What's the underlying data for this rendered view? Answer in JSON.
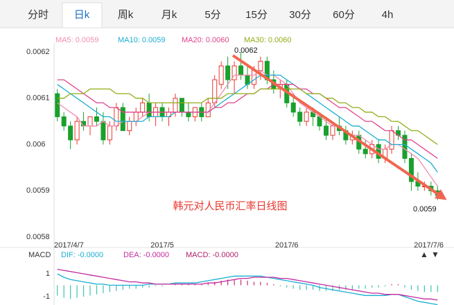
{
  "tabs": [
    "分时",
    "日k",
    "周k",
    "月k",
    "5分",
    "15分",
    "30分",
    "60分",
    "4h"
  ],
  "selected_tab": 1,
  "chart_data": {
    "type": "candlestick",
    "title": "韩元对人民币汇率日线图",
    "legend": [
      "MA5: 0.0059",
      "MA10: 0.0059",
      "MA20: 0.0060",
      "MA30: 0.0060"
    ],
    "annotations": {
      "high": "0.0062",
      "low": "0.0059"
    },
    "categories": [
      "2017/4/7",
      null,
      null,
      null,
      null,
      null,
      null,
      null,
      null,
      null,
      null,
      null,
      null,
      null,
      null,
      null,
      "2017/5",
      null,
      null,
      null,
      null,
      null,
      null,
      null,
      null,
      null,
      null,
      null,
      null,
      null,
      null,
      null,
      null,
      null,
      null,
      "2017/6",
      null,
      null,
      null,
      null,
      null,
      null,
      null,
      null,
      null,
      null,
      null,
      null,
      null,
      null,
      null,
      null,
      null,
      null,
      null,
      null,
      null,
      null,
      "2017/7/6"
    ],
    "open": [
      0.00611,
      0.00606,
      0.00604,
      0.00601,
      0.00605,
      0.00604,
      0.00606,
      0.00605,
      0.00601,
      0.00604,
      0.00608,
      0.00603,
      0.00605,
      0.00607,
      0.00609,
      0.00606,
      0.00608,
      0.00606,
      0.00607,
      0.0061,
      0.00607,
      0.00606,
      0.00608,
      0.00606,
      0.00609,
      0.00613,
      0.00617,
      0.00614,
      0.00617,
      0.00615,
      0.00613,
      0.00616,
      0.00618,
      0.00614,
      0.00612,
      0.00613,
      0.00609,
      0.00607,
      0.00605,
      0.00607,
      0.00606,
      0.00604,
      0.00602,
      0.00604,
      0.00603,
      0.00601,
      0.00602,
      0.00599,
      0.00598,
      0.006,
      0.00597,
      0.00599,
      0.00603,
      0.00602,
      0.00597,
      0.00592,
      0.00591,
      0.00591,
      0.0059
    ],
    "high": [
      0.00612,
      0.00607,
      0.00605,
      0.00606,
      0.00607,
      0.00606,
      0.00608,
      0.00607,
      0.00605,
      0.00609,
      0.00609,
      0.00606,
      0.00608,
      0.0061,
      0.00611,
      0.00609,
      0.00609,
      0.00608,
      0.00611,
      0.0061,
      0.00609,
      0.00608,
      0.00609,
      0.0061,
      0.00615,
      0.00618,
      0.00619,
      0.00618,
      0.0062,
      0.00617,
      0.00617,
      0.00619,
      0.00619,
      0.00616,
      0.00614,
      0.00614,
      0.00611,
      0.00608,
      0.00608,
      0.00608,
      0.00607,
      0.00606,
      0.00605,
      0.00606,
      0.00604,
      0.00603,
      0.00603,
      0.00601,
      0.00601,
      0.00601,
      0.006,
      0.00604,
      0.00604,
      0.00603,
      0.00598,
      0.00594,
      0.00592,
      0.00592,
      0.00591
    ],
    "low": [
      0.00605,
      0.00603,
      0.00599,
      0.006,
      0.00603,
      0.00602,
      0.00604,
      0.006,
      0.006,
      0.00603,
      0.00603,
      0.00602,
      0.00604,
      0.00606,
      0.00605,
      0.00604,
      0.00605,
      0.00604,
      0.00606,
      0.00606,
      0.00605,
      0.00605,
      0.00605,
      0.00606,
      0.00608,
      0.00612,
      0.00612,
      0.00611,
      0.00614,
      0.00612,
      0.00612,
      0.00614,
      0.00613,
      0.00611,
      0.0061,
      0.00608,
      0.00606,
      0.00604,
      0.00604,
      0.00604,
      0.00603,
      0.00601,
      0.00601,
      0.00602,
      0.006,
      0.006,
      0.00598,
      0.00597,
      0.00597,
      0.00596,
      0.00596,
      0.00598,
      0.00601,
      0.00596,
      0.0059,
      0.0059,
      0.0059,
      0.00589,
      0.00588
    ],
    "close": [
      0.00606,
      0.00604,
      0.00601,
      0.00605,
      0.00604,
      0.00606,
      0.00605,
      0.00601,
      0.00604,
      0.00608,
      0.00603,
      0.00605,
      0.00607,
      0.00609,
      0.00606,
      0.00608,
      0.00606,
      0.00607,
      0.0061,
      0.00607,
      0.00606,
      0.00608,
      0.00606,
      0.00609,
      0.00614,
      0.00617,
      0.00614,
      0.00617,
      0.00615,
      0.00613,
      0.00616,
      0.00618,
      0.00614,
      0.00612,
      0.00613,
      0.00609,
      0.00607,
      0.00605,
      0.00607,
      0.00606,
      0.00604,
      0.00602,
      0.00604,
      0.00603,
      0.00601,
      0.00602,
      0.00599,
      0.00598,
      0.006,
      0.00597,
      0.00599,
      0.00603,
      0.00602,
      0.00597,
      0.00592,
      0.00591,
      0.00591,
      0.0059,
      0.00589
    ],
    "up_color": "#e8372f",
    "down_color": "#19a02d",
    "series": [
      {
        "name": "MA5",
        "color": "#f28db2",
        "values": [
          0.00609,
          0.00608,
          0.00607,
          0.00606,
          0.00604,
          0.00604,
          0.00604,
          0.00605,
          0.00604,
          0.00604,
          0.00605,
          0.00605,
          0.00605,
          0.00606,
          0.00607,
          0.00607,
          0.00607,
          0.00607,
          0.00607,
          0.00607,
          0.00607,
          0.00607,
          0.00607,
          0.00607,
          0.00609,
          0.00611,
          0.00613,
          0.00615,
          0.00615,
          0.00615,
          0.00615,
          0.00616,
          0.00615,
          0.00615,
          0.00614,
          0.00613,
          0.00611,
          0.00609,
          0.00608,
          0.00607,
          0.00606,
          0.00605,
          0.00604,
          0.00604,
          0.00603,
          0.00602,
          0.00602,
          0.00601,
          0.006,
          0.00599,
          0.00599,
          0.006,
          0.006,
          0.00599,
          0.00598,
          0.00597,
          0.00595,
          0.00593,
          0.00591
        ]
      },
      {
        "name": "MA10",
        "color": "#1aaed2",
        "values": [
          0.00613,
          0.00612,
          0.00611,
          0.0061,
          0.00609,
          0.00608,
          0.00607,
          0.00606,
          0.00606,
          0.00605,
          0.00605,
          0.00605,
          0.00605,
          0.00605,
          0.00606,
          0.00606,
          0.00606,
          0.00606,
          0.00607,
          0.00607,
          0.00607,
          0.00607,
          0.00607,
          0.00607,
          0.00608,
          0.00609,
          0.0061,
          0.00611,
          0.00612,
          0.00613,
          0.00614,
          0.00615,
          0.00615,
          0.00615,
          0.00615,
          0.00614,
          0.00613,
          0.00612,
          0.00611,
          0.0061,
          0.00609,
          0.00608,
          0.00607,
          0.00606,
          0.00605,
          0.00604,
          0.00604,
          0.00603,
          0.00602,
          0.00601,
          0.00601,
          0.006,
          0.006,
          0.006,
          0.00599,
          0.00598,
          0.00597,
          0.00596,
          0.00594
        ]
      },
      {
        "name": "MA20",
        "color": "#e0428c",
        "values": [
          0.00614,
          0.00614,
          0.00613,
          0.00612,
          0.00611,
          0.0061,
          0.00609,
          0.00609,
          0.00608,
          0.00608,
          0.00607,
          0.00607,
          0.00607,
          0.00607,
          0.00607,
          0.00607,
          0.00607,
          0.00607,
          0.00607,
          0.00607,
          0.00607,
          0.00607,
          0.00607,
          0.00607,
          0.00608,
          0.00608,
          0.00609,
          0.00609,
          0.0061,
          0.00611,
          0.00611,
          0.00612,
          0.00612,
          0.00613,
          0.00613,
          0.00613,
          0.00613,
          0.00612,
          0.00612,
          0.00611,
          0.00611,
          0.0061,
          0.00609,
          0.00608,
          0.00608,
          0.00607,
          0.00606,
          0.00605,
          0.00605,
          0.00604,
          0.00603,
          0.00603,
          0.00602,
          0.00601,
          0.00601,
          0.006,
          0.00599,
          0.00598,
          0.00597
        ]
      },
      {
        "name": "MA30",
        "color": "#8fae14",
        "values": [
          0.0061,
          0.0061,
          0.00611,
          0.00611,
          0.00611,
          0.00612,
          0.00612,
          0.00612,
          0.00612,
          0.00611,
          0.00611,
          0.00611,
          0.0061,
          0.0061,
          0.00609,
          0.00609,
          0.00609,
          0.00609,
          0.00609,
          0.00609,
          0.00609,
          0.00609,
          0.00609,
          0.0061,
          0.0061,
          0.0061,
          0.00611,
          0.00611,
          0.00611,
          0.00611,
          0.00611,
          0.00612,
          0.00612,
          0.00612,
          0.00612,
          0.00612,
          0.00612,
          0.00612,
          0.00611,
          0.00611,
          0.00611,
          0.0061,
          0.0061,
          0.00609,
          0.00609,
          0.00608,
          0.00608,
          0.00607,
          0.00607,
          0.00606,
          0.00606,
          0.00605,
          0.00605,
          0.00604,
          0.00603,
          0.00603,
          0.00602,
          0.00601,
          0.006
        ]
      }
    ],
    "ylim": [
      0.0058,
      0.0062
    ],
    "yticks": [
      0.0062,
      0.0061,
      0.006,
      0.0059,
      0.0058
    ],
    "macd": {
      "label": "MACD",
      "legend": [
        "DIF: -0.0000",
        "DEA: -0.0000",
        "MACD: -0.0000"
      ],
      "ylim": [
        -1.7,
        1.7
      ],
      "yticks": [
        1,
        -1
      ],
      "pos_color": "#c23070",
      "neg_color": "#3fc1b0",
      "histogram": [
        -0.9,
        -1.1,
        -1.2,
        -1.1,
        -1,
        -0.9,
        -0.8,
        -0.7,
        -0.6,
        -0.5,
        -0.4,
        -0.3,
        -0.3,
        -0.2,
        -0.2,
        -0.1,
        -0.1,
        0,
        0.1,
        0.1,
        0.1,
        0.1,
        0.1,
        0.2,
        0.3,
        0.4,
        0.5,
        0.5,
        0.5,
        0.4,
        0.3,
        0.3,
        0.2,
        0.1,
        -0.1,
        -0.2,
        -0.3,
        -0.4,
        -0.4,
        -0.4,
        -0.5,
        -0.5,
        -0.5,
        -0.4,
        -0.4,
        -0.4,
        -0.3,
        -0.3,
        -0.2,
        -0.2,
        -0.1,
        0.1,
        0.1,
        -0.2,
        -0.4,
        -0.5,
        -0.6,
        -0.6,
        -0.6
      ],
      "series": [
        {
          "name": "DIF",
          "color": "#1aaed2",
          "values": [
            1,
            0.7,
            0.5,
            0.4,
            0.3,
            0.2,
            0.1,
            0.1,
            0,
            0,
            0,
            0,
            0,
            0,
            0.1,
            0.1,
            0.1,
            0.1,
            0.2,
            0.2,
            0.2,
            0.2,
            0.3,
            0.4,
            0.5,
            0.6,
            0.7,
            0.8,
            0.8,
            0.8,
            0.8,
            0.8,
            0.7,
            0.6,
            0.5,
            0.4,
            0.3,
            0.2,
            0.1,
            0,
            -0.2,
            -0.3,
            -0.4,
            -0.5,
            -0.6,
            -0.7,
            -0.8,
            -0.9,
            -0.9,
            -0.9,
            -0.9,
            -0.8,
            -0.8,
            -1,
            -1.2,
            -1.4,
            -1.5,
            -1.6,
            -1.7
          ]
        },
        {
          "name": "DEA",
          "color": "#c42a9e",
          "values": [
            1.4,
            1.3,
            1.2,
            1.1,
            1,
            0.9,
            0.8,
            0.7,
            0.6,
            0.5,
            0.4,
            0.3,
            0.3,
            0.2,
            0.2,
            0.1,
            0.1,
            0.1,
            0.1,
            0.1,
            0.1,
            0.1,
            0.1,
            0.2,
            0.2,
            0.3,
            0.4,
            0.5,
            0.6,
            0.6,
            0.7,
            0.7,
            0.7,
            0.7,
            0.6,
            0.6,
            0.5,
            0.4,
            0.3,
            0.2,
            0.1,
            0,
            -0.1,
            -0.2,
            -0.3,
            -0.4,
            -0.5,
            -0.6,
            -0.7,
            -0.7,
            -0.8,
            -0.8,
            -0.8,
            -0.9,
            -1,
            -1.1,
            -1.2,
            -1.2,
            -1.3
          ]
        }
      ]
    }
  }
}
